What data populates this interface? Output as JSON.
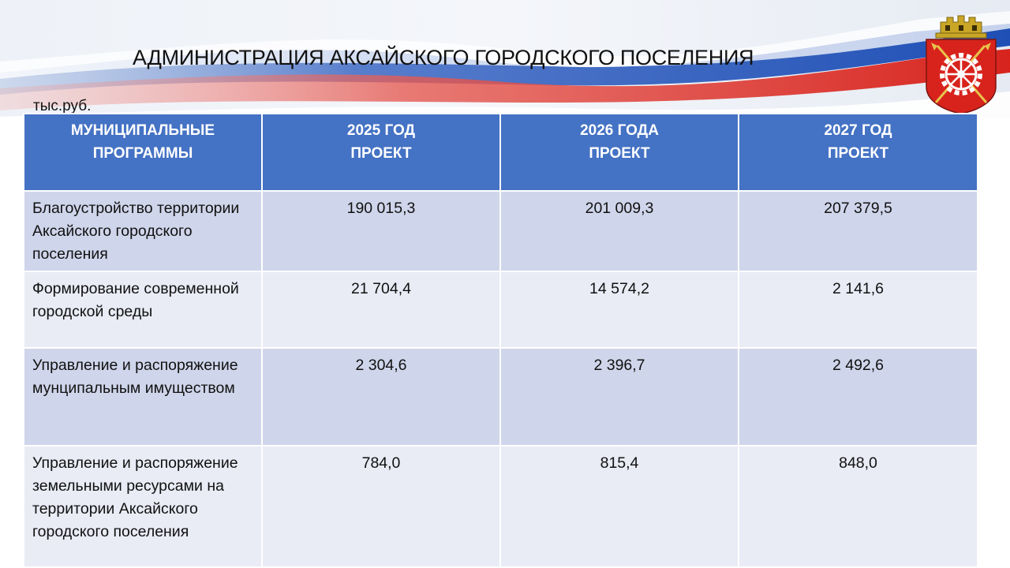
{
  "header": {
    "title": "АДМИНИСТРАЦИЯ АКСАЙСКОГО ГОРОДСКОГО ПОСЕЛЕНИЯ",
    "units": "тыс.руб."
  },
  "colors": {
    "header_fill": "#4472c4",
    "row_dark": "#cfd5ea",
    "row_light": "#e9ebf5",
    "flag_white": "#ffffff",
    "flag_blue": "#1f4fb5",
    "flag_red": "#e0302a"
  },
  "emblem": {
    "icon": "city-coat-of-arms-icon"
  },
  "table": {
    "columns": [
      {
        "line1": "МУНИЦИПАЛЬНЫЕ",
        "line2": "ПРОГРАММЫ"
      },
      {
        "line1": "2025 ГОД",
        "line2": "ПРОЕКТ"
      },
      {
        "line1": "2026 ГОДА",
        "line2": "ПРОЕКТ"
      },
      {
        "line1": "2027 ГОД",
        "line2": "ПРОЕКТ"
      }
    ],
    "rows": [
      {
        "name": "Благоустройство территории Аксайского городского поселения",
        "y2025": "190 015,3",
        "y2026": "201 009,3",
        "y2027": "207 379,5"
      },
      {
        "name": "Формирование современной городской среды",
        "y2025": "21 704,4",
        "y2026": "14 574,2",
        "y2027": "2 141,6"
      },
      {
        "name": "Управление и распоряжение мунципальным имуществом",
        "y2025": "2 304,6",
        "y2026": "2 396,7",
        "y2027": "2 492,6"
      },
      {
        "name": "Управление и распоряжение земельными ресурсами на территории Аксайского городского поселения",
        "y2025": "784,0",
        "y2026": "815,4",
        "y2027": "848,0"
      }
    ]
  }
}
